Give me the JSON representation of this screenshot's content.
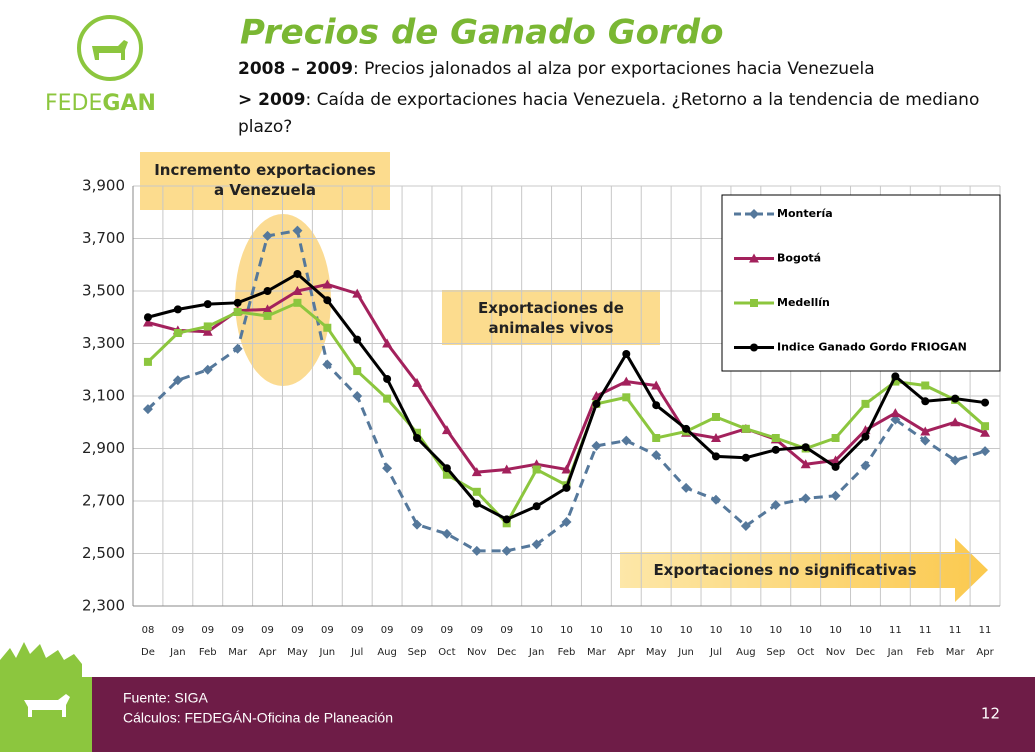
{
  "header": {
    "logo": [
      "FEDE",
      "GAN"
    ],
    "title": "Precios de Ganado Gordo",
    "lines": [
      {
        "bold": "2008 – 2009",
        "text": ": Precios jalonados al alza por exportaciones hacia Venezuela"
      },
      {
        "bold": "> 2009",
        "text": ": Caída de exportaciones hacia Venezuela. ¿Retorno a la tendencia de mediano plazo?"
      }
    ]
  },
  "chart_data": {
    "type": "line",
    "categories": [
      "08 De",
      "09 Jan",
      "09 Feb",
      "09 Mar",
      "09 Apr",
      "09 May",
      "09 Jun",
      "09 Jul",
      "09 Aug",
      "09 Sep",
      "09 Oct",
      "09 Nov",
      "09 Dec",
      "10 Jan",
      "10 Feb",
      "10 Mar",
      "10 Apr",
      "10 May",
      "10 Jun",
      "10 Jul",
      "10 Aug",
      "10 Sep",
      "10 Oct",
      "10 Nov",
      "10 Dec",
      "11 Jan",
      "11 Feb",
      "11 Mar",
      "11 Apr"
    ],
    "series": [
      {
        "name": "Montería",
        "color": "#55789b",
        "dashed": true,
        "marker": "diamond",
        "values": [
          3050,
          3160,
          3200,
          3280,
          3710,
          3730,
          3220,
          3100,
          2825,
          2610,
          2575,
          2510,
          2510,
          2535,
          2620,
          2910,
          2930,
          2875,
          2750,
          2705,
          2605,
          2685,
          2710,
          2720,
          2835,
          3010,
          2930,
          2855,
          2890
        ]
      },
      {
        "name": "Bogotá",
        "color": "#a3215c",
        "dashed": false,
        "marker": "triangle",
        "values": [
          3380,
          3350,
          3345,
          3425,
          3430,
          3500,
          3525,
          3490,
          3300,
          3150,
          2970,
          2810,
          2820,
          2840,
          2820,
          3100,
          3155,
          3140,
          2960,
          2940,
          2975,
          2935,
          2840,
          2855,
          2970,
          3035,
          2965,
          3000,
          2960
        ]
      },
      {
        "name": "Medellín",
        "color": "#8cc63e",
        "dashed": false,
        "marker": "square",
        "values": [
          3230,
          3340,
          3365,
          3420,
          3405,
          3455,
          3360,
          3195,
          3090,
          2960,
          2800,
          2735,
          2615,
          2820,
          2760,
          3070,
          3095,
          2940,
          2965,
          3020,
          2975,
          2940,
          2900,
          2940,
          3070,
          3155,
          3140,
          3085,
          2985
        ]
      },
      {
        "name": "Indice Ganado Gordo FRIOGAN",
        "color": "#000000",
        "dashed": false,
        "marker": "circle",
        "values": [
          3400,
          3430,
          3450,
          3455,
          3500,
          3565,
          3465,
          3315,
          3165,
          2940,
          2825,
          2690,
          2630,
          2680,
          2750,
          3070,
          3260,
          3065,
          2975,
          2870,
          2865,
          2895,
          2905,
          2830,
          2945,
          3175,
          3080,
          3090,
          3075
        ]
      }
    ],
    "ylim": [
      2300,
      3900
    ],
    "yticks": [
      {
        "value": 2300,
        "label": "2,300"
      },
      {
        "value": 2500,
        "label": "2,500"
      },
      {
        "value": 2700,
        "label": "2,700"
      },
      {
        "value": 2900,
        "label": "2,900"
      },
      {
        "value": 3100,
        "label": "3,100"
      },
      {
        "value": 3300,
        "label": "3,300"
      },
      {
        "value": 3500,
        "label": "3,500"
      },
      {
        "value": 3700,
        "label": "3,700"
      },
      {
        "value": 3900,
        "label": "3,900"
      }
    ],
    "grid": true,
    "legend": "upper right",
    "annotations": [
      "Incremento exportaciones a Venezuela",
      "Exportaciones de animales vivos",
      "Exportaciones no significativas"
    ]
  },
  "footer": {
    "source": "Fuente: SIGA",
    "calc": "Cálculos: FEDEGÁN-Oficina de Planeación",
    "page": "12"
  }
}
